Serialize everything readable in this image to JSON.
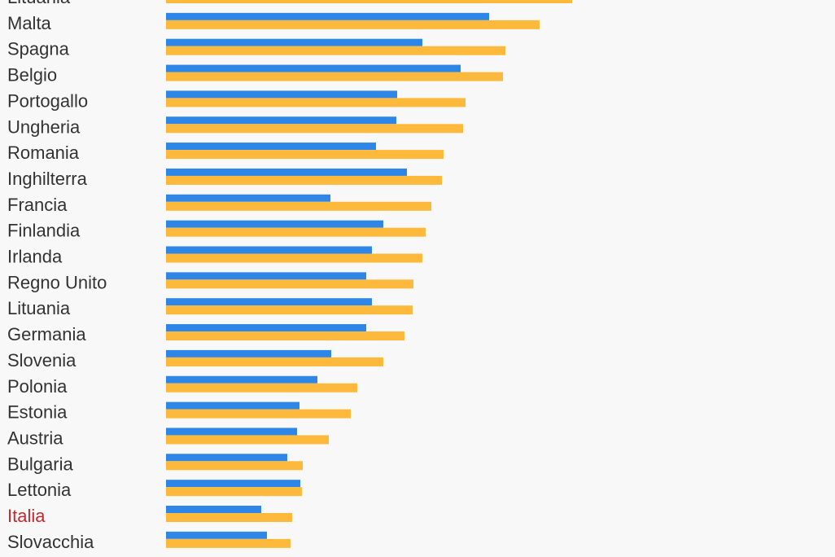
{
  "chart_data": {
    "type": "bar",
    "orientation": "horizontal",
    "title": "",
    "xlabel": "",
    "ylabel": "",
    "grid": false,
    "legend": "none",
    "xlim": [
      0,
      820
    ],
    "categories": [
      "Lituania",
      "Malta",
      "Spagna",
      "Belgio",
      "Portogallo",
      "Ungheria",
      "Romania",
      "Inghilterra",
      "Francia",
      "Finlandia",
      "Irlanda",
      "Regno Unito",
      "Lituania",
      "Germania",
      "Slovenia",
      "Polonia",
      "Estonia",
      "Austria",
      "Bulgaria",
      "Lettonia",
      "Italia",
      "Slovacchia"
    ],
    "highlight_category_index": 20,
    "colors": {
      "text": "#333333",
      "highlight_text": "#c8282d"
    },
    "series": [
      {
        "color": "#2e86e6",
        "values": [
          null,
          397,
          315,
          362,
          284,
          283,
          258,
          296,
          202,
          267,
          253,
          246,
          253,
          246,
          203,
          186,
          164,
          161,
          149,
          165,
          117,
          124
        ]
      },
      {
        "color": "#fdb93c",
        "values": [
          499,
          459,
          417,
          414,
          368,
          365,
          341,
          339,
          326,
          319,
          315,
          304,
          303,
          293,
          267,
          235,
          227,
          200,
          168,
          167,
          155,
          153
        ]
      }
    ]
  }
}
